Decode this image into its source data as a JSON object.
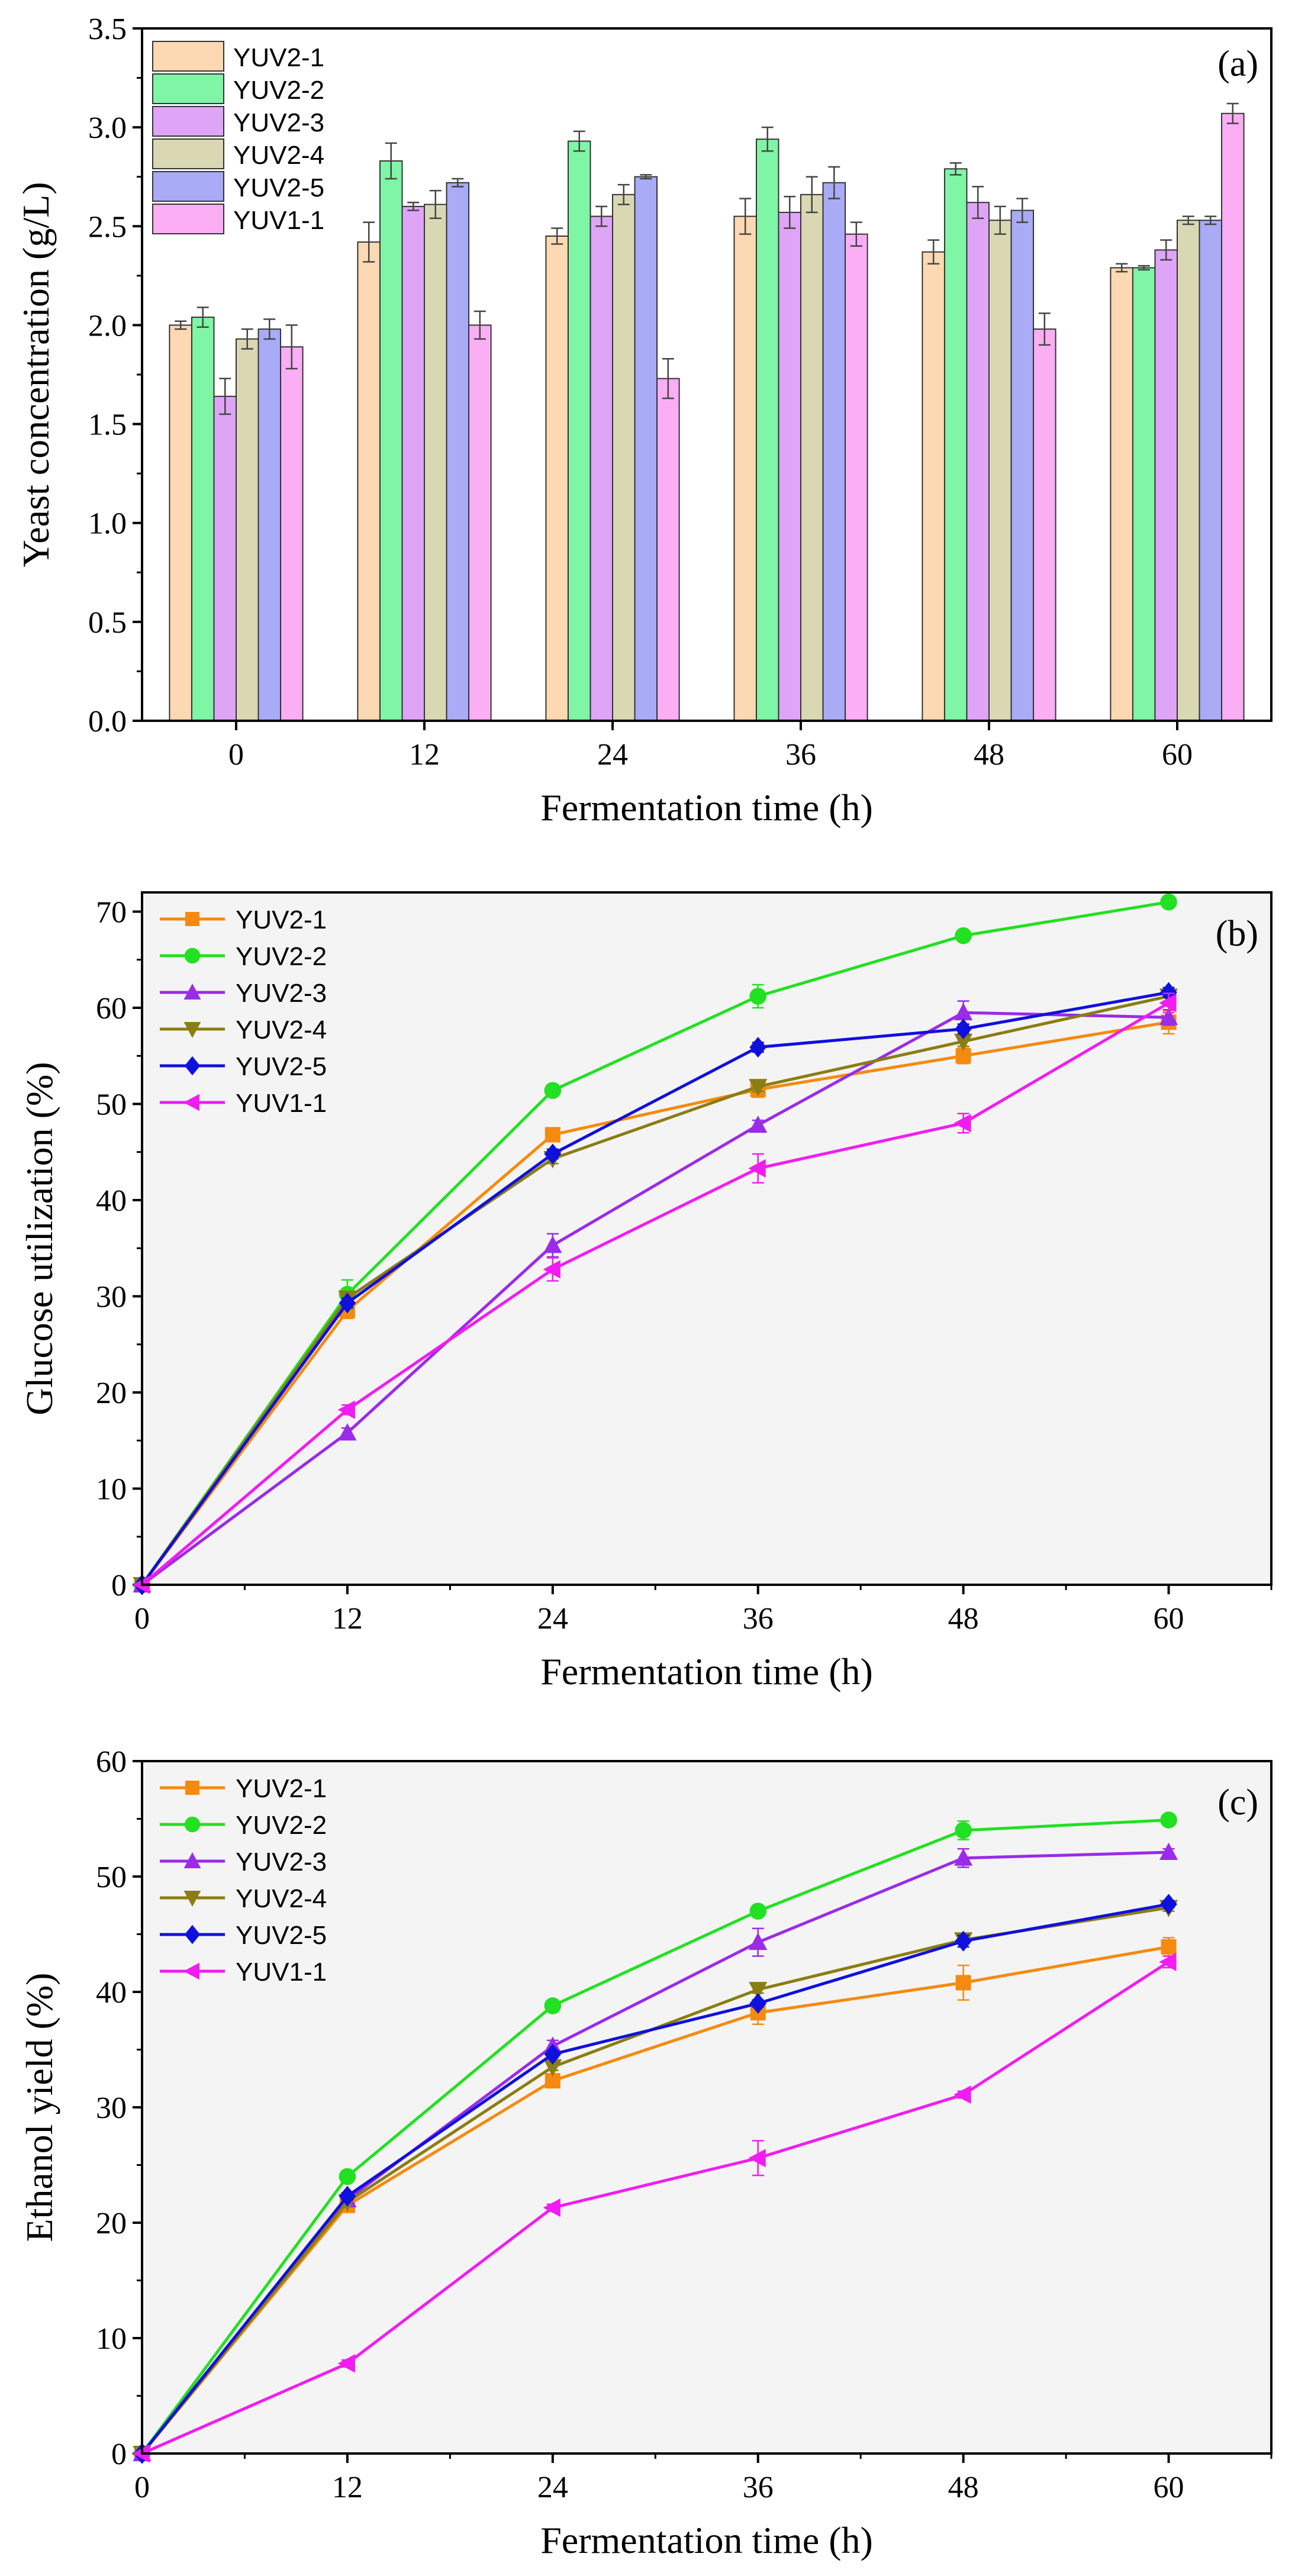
{
  "chart_data": [
    {
      "panel": "(a)",
      "type": "bar",
      "categories": [
        "0",
        "12",
        "24",
        "36",
        "48",
        "60"
      ],
      "xlabel": "Fermentation time (h)",
      "ylabel": "Yeast concentration (g/L)",
      "ylim": [
        0,
        3.5
      ],
      "yticks": [
        "0.0",
        "0.5",
        "1.0",
        "1.5",
        "2.0",
        "2.5",
        "3.0",
        "3.5"
      ],
      "legend_position": "top-left",
      "series": [
        {
          "name": "YUV2-1",
          "color": "#fcd9b2",
          "values": [
            2.0,
            2.42,
            2.45,
            2.55,
            2.37,
            2.29
          ],
          "errors": [
            0.02,
            0.1,
            0.04,
            0.09,
            0.06,
            0.02
          ]
        },
        {
          "name": "YUV2-2",
          "color": "#7ff5a6",
          "values": [
            2.04,
            2.83,
            2.93,
            2.94,
            2.79,
            2.29
          ],
          "errors": [
            0.05,
            0.09,
            0.05,
            0.06,
            0.03,
            0.01
          ]
        },
        {
          "name": "YUV2-3",
          "color": "#dea5f7",
          "values": [
            1.64,
            2.6,
            2.55,
            2.57,
            2.62,
            2.38
          ],
          "errors": [
            0.09,
            0.02,
            0.05,
            0.08,
            0.08,
            0.05
          ]
        },
        {
          "name": "YUV2-4",
          "color": "#d9d8b3",
          "values": [
            1.93,
            2.61,
            2.66,
            2.66,
            2.53,
            2.53
          ],
          "errors": [
            0.05,
            0.07,
            0.05,
            0.09,
            0.07,
            0.02
          ]
        },
        {
          "name": "YUV2-5",
          "color": "#a9abf7",
          "values": [
            1.98,
            2.72,
            2.75,
            2.72,
            2.58,
            2.53
          ],
          "errors": [
            0.05,
            0.02,
            0.01,
            0.08,
            0.06,
            0.02
          ]
        },
        {
          "name": "YUV1-1",
          "color": "#fcaef5",
          "values": [
            1.89,
            2.0,
            1.73,
            2.46,
            1.98,
            3.07
          ],
          "errors": [
            0.11,
            0.07,
            0.1,
            0.06,
            0.08,
            0.05
          ]
        }
      ]
    },
    {
      "panel": "(b)",
      "type": "line",
      "x": [
        0,
        12,
        24,
        36,
        48,
        60
      ],
      "xticks": [
        "0",
        "12",
        "24",
        "36",
        "48",
        "60"
      ],
      "xlim": [
        0,
        66
      ],
      "xlabel": "Fermentation time (h)",
      "ylabel": "Glucose utilization (%)",
      "ylim": [
        0,
        72
      ],
      "yticks": [
        "0",
        "10",
        "20",
        "30",
        "40",
        "50",
        "60",
        "70"
      ],
      "legend_position": "top-left",
      "series": [
        {
          "name": "YUV2-1",
          "color": "#f58a0f",
          "marker": "square",
          "values": [
            0,
            28.5,
            46.8,
            51.5,
            55.0,
            58.5
          ],
          "errors": [
            0,
            0.8,
            0.5,
            0.8,
            0.8,
            1.2
          ]
        },
        {
          "name": "YUV2-2",
          "color": "#22e022",
          "marker": "circle",
          "values": [
            0,
            30.2,
            51.4,
            61.2,
            67.5,
            71.0
          ],
          "errors": [
            0,
            1.5,
            0.5,
            1.2,
            0.5,
            0.3
          ]
        },
        {
          "name": "YUV2-3",
          "color": "#9a2be8",
          "marker": "triangle-up",
          "values": [
            0,
            15.8,
            35.3,
            47.8,
            59.5,
            59.0
          ],
          "errors": [
            0,
            0.5,
            1.2,
            0.5,
            1.2,
            0.8
          ]
        },
        {
          "name": "YUV2-4",
          "color": "#8a7d12",
          "marker": "triangle-down",
          "values": [
            0,
            29.8,
            44.3,
            51.8,
            56.5,
            61.2
          ],
          "errors": [
            0,
            0.5,
            0.5,
            0.5,
            0.5,
            0.5
          ]
        },
        {
          "name": "YUV2-5",
          "color": "#1010dd",
          "marker": "diamond",
          "values": [
            0,
            29.3,
            44.8,
            55.9,
            57.8,
            61.6
          ],
          "errors": [
            0,
            0.5,
            0.5,
            0.5,
            0.5,
            0.5
          ]
        },
        {
          "name": "YUV1-1",
          "color": "#f01df0",
          "marker": "triangle-left",
          "values": [
            0,
            18.2,
            32.8,
            43.3,
            48.0,
            60.5
          ],
          "errors": [
            0,
            0.5,
            1.2,
            1.5,
            1.0,
            1.0
          ]
        }
      ]
    },
    {
      "panel": "(c)",
      "type": "line",
      "x": [
        0,
        12,
        24,
        36,
        48,
        60
      ],
      "xticks": [
        "0",
        "12",
        "24",
        "36",
        "48",
        "60"
      ],
      "xlim": [
        0,
        66
      ],
      "xlabel": "Fermentation time (h)",
      "ylabel": "Ethanol yield (%)",
      "ylim": [
        0,
        60
      ],
      "yticks": [
        "0",
        "10",
        "20",
        "30",
        "40",
        "50",
        "60"
      ],
      "legend_position": "top-left",
      "series": [
        {
          "name": "YUV2-1",
          "color": "#f58a0f",
          "marker": "square",
          "values": [
            0,
            21.5,
            32.3,
            38.2,
            40.8,
            43.9
          ],
          "errors": [
            0,
            0.5,
            0.5,
            1.0,
            1.5,
            0.8
          ]
        },
        {
          "name": "YUV2-2",
          "color": "#22e022",
          "marker": "circle",
          "values": [
            0,
            24.0,
            38.8,
            47.0,
            54.0,
            54.9
          ],
          "errors": [
            0,
            0.3,
            0.3,
            0.3,
            0.8,
            0.3
          ]
        },
        {
          "name": "YUV2-3",
          "color": "#9a2be8",
          "marker": "triangle-up",
          "values": [
            0,
            22.0,
            35.3,
            44.3,
            51.6,
            52.1
          ],
          "errors": [
            0,
            0.5,
            0.5,
            1.2,
            0.8,
            0.3
          ]
        },
        {
          "name": "YUV2-4",
          "color": "#8a7d12",
          "marker": "triangle-down",
          "values": [
            0,
            21.8,
            33.5,
            40.2,
            44.5,
            47.3
          ],
          "errors": [
            0,
            0.3,
            0.3,
            0.3,
            0.3,
            0.3
          ]
        },
        {
          "name": "YUV2-5",
          "color": "#1010dd",
          "marker": "diamond",
          "values": [
            0,
            22.3,
            34.6,
            39.0,
            44.4,
            47.6
          ],
          "errors": [
            0,
            0.3,
            0.3,
            0.3,
            0.5,
            0.3
          ]
        },
        {
          "name": "YUV1-1",
          "color": "#f01df0",
          "marker": "triangle-left",
          "values": [
            0,
            7.8,
            21.3,
            25.6,
            31.1,
            42.6
          ],
          "errors": [
            0,
            0.3,
            0.3,
            1.5,
            0.3,
            0.5
          ]
        }
      ]
    }
  ]
}
